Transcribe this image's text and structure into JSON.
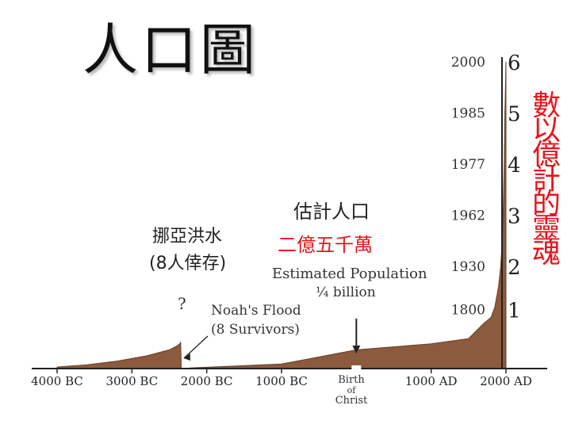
{
  "title": "人口圖",
  "annotations": {
    "flood_zh_line1": "挪亞洪水",
    "flood_zh_line2": "(8人倖存)",
    "estimate_zh_line1": "估計人口",
    "estimate_zh_line2": "二億五千萬",
    "estimated_population": "Estimated Population",
    "quarter_billion": "¼ billion",
    "question_mark": "?",
    "noahs_flood": "Noah's Flood",
    "eight_survivors": "(8 Survivors)",
    "birth_label": [
      "Birth",
      "of",
      "Christ"
    ],
    "vertical_red": [
      "數",
      "以",
      "億",
      "計",
      "的",
      "靈",
      "魂"
    ]
  },
  "colors": {
    "area_fill": "#8c5a3c",
    "red_text": "#e8151b",
    "text": "#222222"
  },
  "chart_data": {
    "type": "area",
    "title": "",
    "x_axis_labels": [
      "4000 BC",
      "3000 BC",
      "2000 BC",
      "1000 BC",
      "1000 AD",
      "2000 AD"
    ],
    "x_tick_years": [
      -4000,
      -3000,
      -2000,
      -1000,
      1000,
      2000
    ],
    "y_right_labels": [
      "1",
      "2",
      "3",
      "4",
      "5",
      "6"
    ],
    "y_unit": "billion",
    "ylim": [
      0,
      6.5
    ],
    "xlim": [
      -4000,
      2000
    ],
    "milestones": [
      {
        "year_label": "1800",
        "year": 1800,
        "value": 1
      },
      {
        "year_label": "1930",
        "year": 1930,
        "value": 2
      },
      {
        "year_label": "1962",
        "year": 1962,
        "value": 3
      },
      {
        "year_label": "1977",
        "year": 1977,
        "value": 4
      },
      {
        "year_label": "1985",
        "year": 1985,
        "value": 5
      },
      {
        "year_label": "2000",
        "year": 2000,
        "value": 6
      }
    ],
    "series": [
      {
        "x": [
          -4000,
          -3600,
          -3200,
          -2800,
          -2500,
          -2400,
          -2360,
          -2348,
          -2340,
          -2200,
          -1000,
          0,
          1000,
          1500,
          1700,
          1800,
          1850,
          1900,
          1930,
          1950,
          1962,
          1970,
          1977,
          1985,
          1990,
          2000
        ],
        "y": [
          0.02,
          0.05,
          0.1,
          0.17,
          0.25,
          0.3,
          0.33,
          0.35,
          0.0,
          0.01,
          0.06,
          0.25,
          0.33,
          0.4,
          0.6,
          1.0,
          1.2,
          1.6,
          2.0,
          2.5,
          3.0,
          3.6,
          4.0,
          5.0,
          5.3,
          6.0
        ]
      }
    ]
  }
}
